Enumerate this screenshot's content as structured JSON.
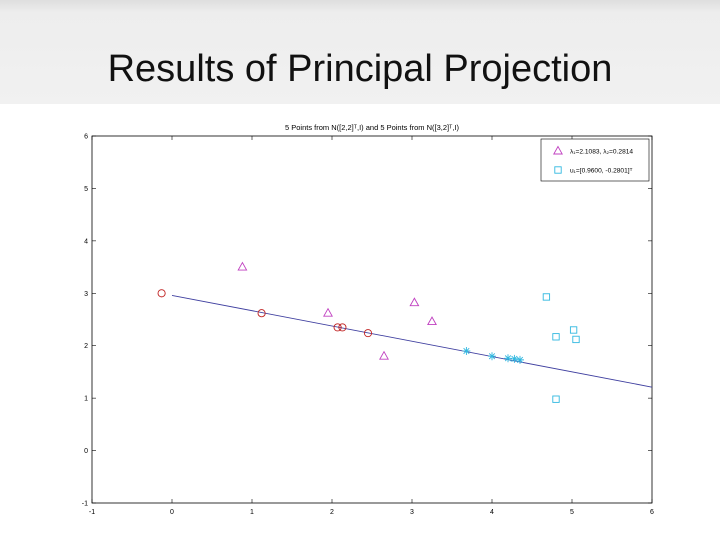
{
  "slide": {
    "title": "Results of Principal Projection"
  },
  "chart_data": {
    "type": "scatter",
    "title": "5 Points from N([2,2]ᵀ,I) and 5 Points from N([3,2]ᵀ,I)",
    "xlabel": "",
    "ylabel": "",
    "xlim": [
      -1,
      6
    ],
    "ylim": [
      -1,
      6
    ],
    "xticks": [
      "-1",
      "0",
      "1",
      "2",
      "3",
      "4",
      "5",
      "6"
    ],
    "yticks": [
      "-1",
      "0",
      "1",
      "2",
      "3",
      "4",
      "5",
      "6"
    ],
    "grid": false,
    "legend_position": "top-right",
    "legend": [
      {
        "label": "λ₁=2.1083, λ₂=0.2814",
        "marker": "triangle",
        "color": "#c040c0"
      },
      {
        "label": "u₁=[0.9600, -0.2801]ᵀ",
        "marker": "square",
        "color": "#30b8e0"
      }
    ],
    "series": [
      {
        "marker": "triangle",
        "color": "#c040c0",
        "points": [
          [
            0.88,
            3.5
          ],
          [
            1.95,
            2.62
          ],
          [
            2.65,
            1.8
          ],
          [
            3.03,
            2.82
          ],
          [
            3.25,
            2.46
          ]
        ]
      },
      {
        "marker": "square",
        "color": "#30b8e0",
        "points": [
          [
            4.68,
            2.93
          ],
          [
            4.8,
            2.17
          ],
          [
            5.02,
            2.3
          ],
          [
            5.05,
            2.12
          ],
          [
            4.8,
            0.98
          ]
        ]
      },
      {
        "marker": "circle",
        "color": "#c02020",
        "points": [
          [
            -0.13,
            3.0
          ],
          [
            1.12,
            2.62
          ],
          [
            2.07,
            2.35
          ],
          [
            2.13,
            2.35
          ],
          [
            2.45,
            2.24
          ]
        ]
      },
      {
        "marker": "star",
        "color": "#30b8e0",
        "points": [
          [
            3.68,
            1.9
          ],
          [
            4.0,
            1.8
          ],
          [
            4.2,
            1.76
          ],
          [
            4.28,
            1.75
          ],
          [
            4.35,
            1.73
          ]
        ]
      }
    ],
    "principal_line": {
      "color": "#4040a0",
      "points": [
        [
          0.0,
          2.96
        ],
        [
          6.0,
          1.21
        ]
      ]
    }
  }
}
